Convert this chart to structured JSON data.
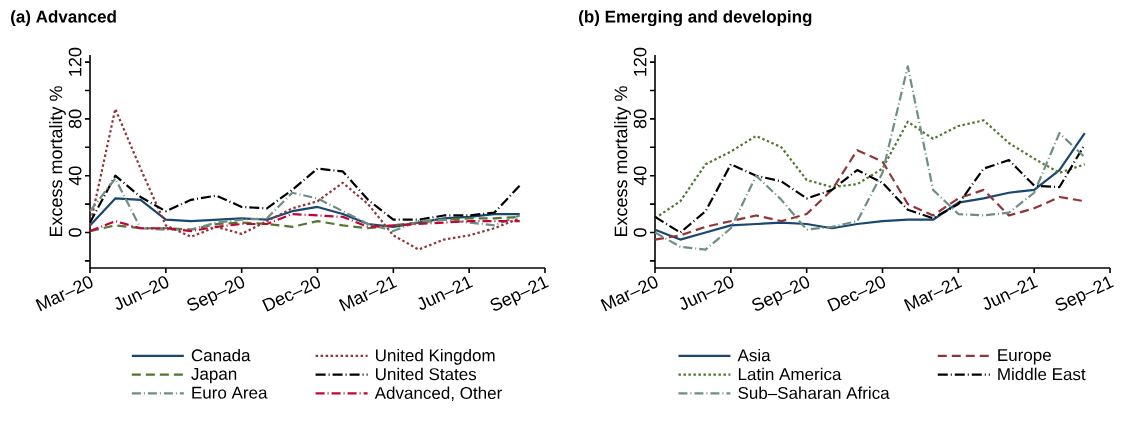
{
  "chart_data": [
    {
      "type": "line",
      "title": "(a) Advanced",
      "ylabel": "Excess mortality %",
      "x": [
        "2020-03",
        "2020-04",
        "2020-05",
        "2020-06",
        "2020-07",
        "2020-08",
        "2020-09",
        "2020-10",
        "2020-11",
        "2020-12",
        "2021-01",
        "2021-02",
        "2021-03",
        "2021-04",
        "2021-05",
        "2021-06",
        "2021-07",
        "2021-08"
      ],
      "series": [
        {
          "name": "Canada",
          "color": "#1a476f",
          "line_style": "solid",
          "values": [
            5,
            24,
            23,
            9,
            8,
            9,
            10,
            9,
            15,
            18,
            13,
            6,
            4,
            7,
            10,
            11,
            13,
            13
          ]
        },
        {
          "name": "United Kingdom",
          "color": "#90353b",
          "line_style": "dotted",
          "values": [
            5,
            87,
            45,
            5,
            -3,
            4,
            -1,
            8,
            17,
            22,
            35,
            20,
            -2,
            -12,
            -5,
            -2,
            3,
            10
          ]
        },
        {
          "name": "Japan",
          "color": "#55752f",
          "line_style": "dashed",
          "values": [
            1,
            5,
            3,
            3,
            2,
            6,
            7,
            6,
            4,
            8,
            5,
            3,
            5,
            7,
            9,
            10,
            10,
            11
          ]
        },
        {
          "name": "United States",
          "color": "#000000",
          "line_style": "longdashdot",
          "values": [
            7,
            40,
            25,
            15,
            23,
            26,
            18,
            17,
            30,
            45,
            43,
            23,
            9,
            9,
            12,
            12,
            14,
            33
          ]
        },
        {
          "name": "Euro Area",
          "color": "#6e8e84",
          "line_style": "dashdot",
          "values": [
            15,
            38,
            3,
            2,
            2,
            7,
            9,
            10,
            28,
            24,
            15,
            6,
            1,
            8,
            9,
            7,
            5,
            12
          ]
        },
        {
          "name": "Advanced, Other",
          "color": "#c10534",
          "line_style": "dashdot",
          "values": [
            1,
            8,
            3,
            3,
            1,
            4,
            6,
            6,
            13,
            12,
            11,
            4,
            5,
            6,
            7,
            8,
            8,
            8
          ]
        }
      ],
      "xlim": [
        "2020-03",
        "2021-09"
      ],
      "ylim": [
        -25,
        125
      ],
      "xticks": [
        {
          "value": "2020-03",
          "label": "Mar–20"
        },
        {
          "value": "2020-06",
          "label": "Jun–20"
        },
        {
          "value": "2020-09",
          "label": "Sep–20"
        },
        {
          "value": "2020-12",
          "label": "Dec–20"
        },
        {
          "value": "2021-03",
          "label": "Mar–21"
        },
        {
          "value": "2021-06",
          "label": "Jun–21"
        },
        {
          "value": "2021-09",
          "label": "Sep–21"
        }
      ],
      "yticks": [
        {
          "value": -20,
          "label": null
        },
        0,
        {
          "value": 20,
          "label": null
        },
        40,
        {
          "value": 60,
          "label": null
        },
        80,
        {
          "value": 100,
          "label": null
        },
        120
      ],
      "legend": "bottom"
    },
    {
      "type": "line",
      "title": "(b) Emerging and developing",
      "ylabel": "Excess mortality %",
      "x": [
        "2020-03",
        "2020-04",
        "2020-05",
        "2020-06",
        "2020-07",
        "2020-08",
        "2020-09",
        "2020-10",
        "2020-11",
        "2020-12",
        "2021-01",
        "2021-02",
        "2021-03",
        "2021-04",
        "2021-05",
        "2021-06",
        "2021-07",
        "2021-08"
      ],
      "series": [
        {
          "name": "Asia",
          "color": "#1a476f",
          "line_style": "solid",
          "values": [
            2,
            -5,
            0,
            5,
            6,
            7,
            6,
            3,
            6,
            8,
            9,
            9,
            21,
            24,
            28,
            30,
            44,
            70
          ]
        },
        {
          "name": "Europe",
          "color": "#90353b",
          "line_style": "dashed",
          "values": [
            -5,
            -2,
            4,
            8,
            12,
            8,
            13,
            30,
            58,
            50,
            20,
            12,
            24,
            30,
            12,
            17,
            25,
            22
          ]
        },
        {
          "name": "Latin America",
          "color": "#55752f",
          "line_style": "dotted",
          "values": [
            10,
            22,
            48,
            57,
            68,
            60,
            37,
            32,
            34,
            45,
            78,
            66,
            75,
            79,
            63,
            52,
            42,
            48
          ]
        },
        {
          "name": "Middle East",
          "color": "#000000",
          "line_style": "longdashdot",
          "values": [
            11,
            0,
            15,
            48,
            40,
            36,
            24,
            30,
            44,
            35,
            16,
            10,
            20,
            45,
            51,
            33,
            32,
            62
          ]
        },
        {
          "name": "Sub–Saharan Africa",
          "color": "#6e8e84",
          "line_style": "dashdot",
          "values": [
            0,
            -10,
            -12,
            3,
            40,
            23,
            2,
            4,
            8,
            42,
            117,
            30,
            13,
            12,
            14,
            28,
            70,
            53
          ]
        }
      ],
      "xlim": [
        "2020-03",
        "2021-09"
      ],
      "ylim": [
        -25,
        125
      ],
      "xticks": [
        {
          "value": "2020-03",
          "label": "Mar–20"
        },
        {
          "value": "2020-06",
          "label": "Jun–20"
        },
        {
          "value": "2020-09",
          "label": "Sep–20"
        },
        {
          "value": "2020-12",
          "label": "Dec–20"
        },
        {
          "value": "2021-03",
          "label": "Mar–21"
        },
        {
          "value": "2021-06",
          "label": "Jun–21"
        },
        {
          "value": "2021-09",
          "label": "Sep–21"
        }
      ],
      "yticks": [
        {
          "value": -20,
          "label": null
        },
        0,
        {
          "value": 20,
          "label": null
        },
        40,
        {
          "value": 60,
          "label": null
        },
        80,
        {
          "value": 100,
          "label": null
        },
        120
      ],
      "legend": "bottom"
    }
  ]
}
